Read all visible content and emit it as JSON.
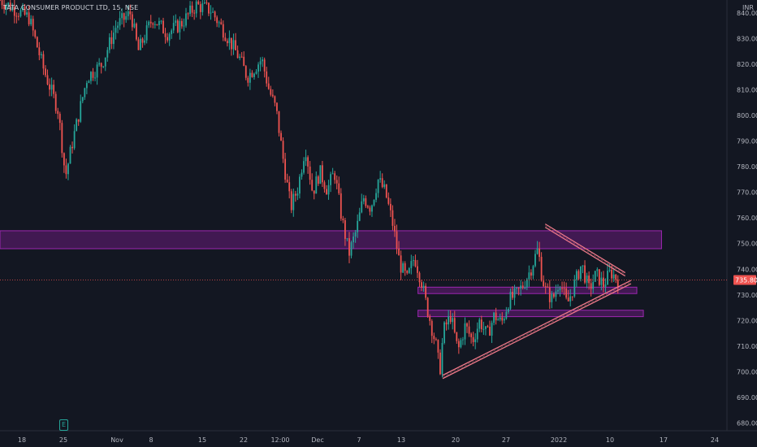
{
  "header": {
    "symbol_line": "TATA CONSUMER PRODUCT LTD, 15, NSE"
  },
  "price_axis": {
    "currency": "INR",
    "current_price_label": "735.80",
    "current_price_color": "#ef5350"
  },
  "earnings_marker": {
    "label": "E"
  },
  "colors": {
    "background": "#131722",
    "up": "#26a69a",
    "down": "#ef5350",
    "zone_fill": "#4a1a5a",
    "zone_border": "#9c27b0",
    "trendline": "#f07a8a"
  },
  "chart_data": {
    "type": "candlestick",
    "title": "TATA CONSUMER PRODUCT LTD, 15, NSE",
    "ylabel": "INR",
    "ylim": [
      677,
      845
    ],
    "y_ticks": [
      "840.00",
      "830.00",
      "820.00",
      "810.00",
      "800.00",
      "790.00",
      "780.00",
      "770.00",
      "760.00",
      "750.00",
      "740.00",
      "730.00",
      "720.00",
      "710.00",
      "700.00",
      "690.00",
      "680.00"
    ],
    "x_ticks": [
      "18",
      "25",
      "Nov",
      "8",
      "15",
      "22",
      "12:00",
      "Dec",
      "7",
      "13",
      "20",
      "27",
      "2022",
      "10",
      "17",
      "24"
    ],
    "price_path": [
      [
        0,
        845
      ],
      [
        0.04,
        838
      ],
      [
        0.06,
        818
      ],
      [
        0.08,
        802
      ],
      [
        0.09,
        776
      ],
      [
        0.1,
        790
      ],
      [
        0.12,
        815
      ],
      [
        0.14,
        820
      ],
      [
        0.16,
        835
      ],
      [
        0.18,
        840
      ],
      [
        0.19,
        825
      ],
      [
        0.21,
        838
      ],
      [
        0.23,
        832
      ],
      [
        0.25,
        836
      ],
      [
        0.27,
        843
      ],
      [
        0.29,
        841
      ],
      [
        0.31,
        832
      ],
      [
        0.33,
        822
      ],
      [
        0.34,
        815
      ],
      [
        0.36,
        822
      ],
      [
        0.37,
        810
      ],
      [
        0.38,
        802
      ],
      [
        0.39,
        782
      ],
      [
        0.4,
        764
      ],
      [
        0.41,
        772
      ],
      [
        0.42,
        788
      ],
      [
        0.43,
        770
      ],
      [
        0.44,
        778
      ],
      [
        0.45,
        771
      ],
      [
        0.46,
        778
      ],
      [
        0.47,
        760
      ],
      [
        0.48,
        746
      ],
      [
        0.49,
        755
      ],
      [
        0.5,
        768
      ],
      [
        0.51,
        764
      ],
      [
        0.52,
        775
      ],
      [
        0.53,
        770
      ],
      [
        0.54,
        758
      ],
      [
        0.55,
        742
      ],
      [
        0.56,
        736
      ],
      [
        0.57,
        745
      ],
      [
        0.58,
        735
      ],
      [
        0.585,
        728
      ],
      [
        0.59,
        722
      ],
      [
        0.6,
        710
      ],
      [
        0.605,
        700
      ],
      [
        0.61,
        716
      ],
      [
        0.62,
        722
      ],
      [
        0.63,
        708
      ],
      [
        0.64,
        718
      ],
      [
        0.65,
        712
      ],
      [
        0.66,
        720
      ],
      [
        0.67,
        714
      ],
      [
        0.68,
        722
      ],
      [
        0.69,
        719
      ],
      [
        0.7,
        728
      ],
      [
        0.71,
        730
      ],
      [
        0.72,
        734
      ],
      [
        0.73,
        740
      ],
      [
        0.74,
        748
      ],
      [
        0.745,
        738
      ],
      [
        0.75,
        732
      ],
      [
        0.76,
        728
      ],
      [
        0.77,
        736
      ],
      [
        0.78,
        726
      ],
      [
        0.79,
        734
      ],
      [
        0.8,
        742
      ],
      [
        0.81,
        732
      ],
      [
        0.82,
        738
      ],
      [
        0.83,
        734
      ],
      [
        0.84,
        739
      ],
      [
        0.85,
        735.8
      ]
    ],
    "zones": [
      {
        "y1": 748,
        "y2": 755,
        "x_end": 0.91
      },
      {
        "y1": 730.5,
        "y2": 733,
        "x_end": 0.876
      },
      {
        "y1": 721.5,
        "y2": 724,
        "x_end": 0.885
      }
    ],
    "trendlines": [
      {
        "from": [
          0.609,
          698
        ],
        "to": [
          0.868,
          735
        ]
      },
      {
        "from": [
          0.75,
          757
        ],
        "to": [
          0.86,
          738
        ]
      }
    ],
    "current_price": 735.8,
    "grid": false
  }
}
